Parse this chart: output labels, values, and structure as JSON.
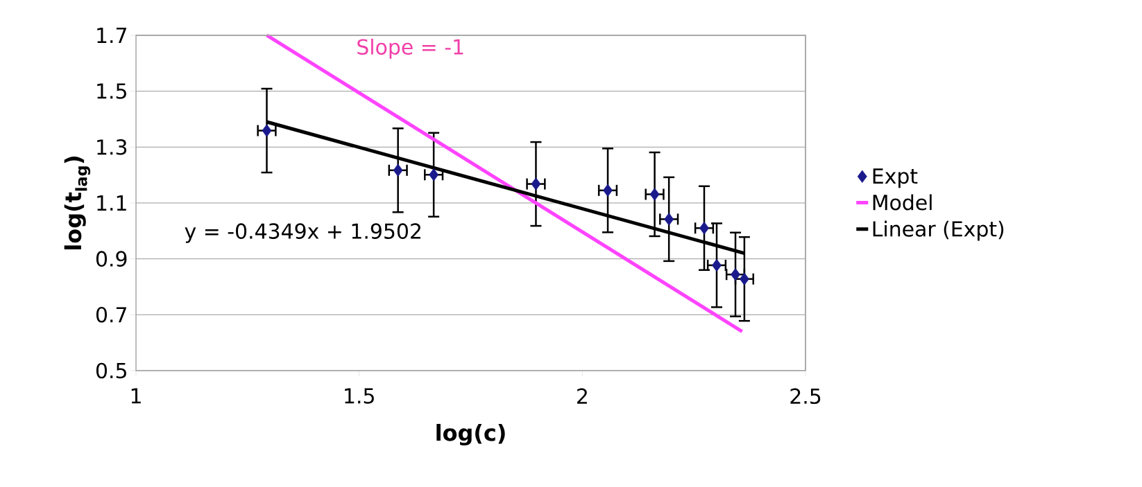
{
  "chart_data": {
    "type": "scatter",
    "xlabel": "log(c)",
    "ylabel": "log(t$_{lag}$)",
    "xlim": [
      1,
      2.5
    ],
    "xticks": [
      1,
      1.5,
      2,
      2.5
    ],
    "ylim": [
      0.5,
      1.7
    ],
    "yticks": [
      0.5,
      0.7,
      0.9,
      1.1,
      1.3,
      1.5,
      1.7
    ],
    "grid": "y",
    "legend": "right",
    "series": [
      {
        "name": "Expt",
        "color": "#1a1a8c",
        "marker": "diamond",
        "x": [
          1.293,
          1.587,
          1.667,
          1.896,
          2.057,
          2.162,
          2.194,
          2.273,
          2.301,
          2.343,
          2.363
        ],
        "values": [
          1.359,
          1.217,
          1.201,
          1.168,
          1.145,
          1.131,
          1.042,
          1.01,
          0.877,
          0.844,
          0.828
        ],
        "errors": [
          0.15,
          0.15,
          0.15,
          0.15,
          0.15,
          0.15,
          0.15,
          0.15,
          0.15,
          0.15,
          0.15
        ],
        "xerrors": [
          0.02,
          0.02,
          0.02,
          0.02,
          0.02,
          0.02,
          0.02,
          0.02,
          0.02,
          0.02,
          0.02
        ]
      },
      {
        "name": "Model",
        "type": "line",
        "color": "#ff44ff",
        "marker": "none",
        "x": [
          1.293,
          2.358
        ],
        "values": [
          1.7,
          0.64
        ]
      },
      {
        "name": "Linear (Expt)",
        "type": "line",
        "color": "#000000",
        "marker": "none",
        "x": [
          1.293,
          2.363
        ],
        "values": [
          1.39,
          0.92
        ]
      }
    ],
    "annotations": [
      "Slope = -1",
      "y = -0.4349x + 1.9502"
    ]
  }
}
